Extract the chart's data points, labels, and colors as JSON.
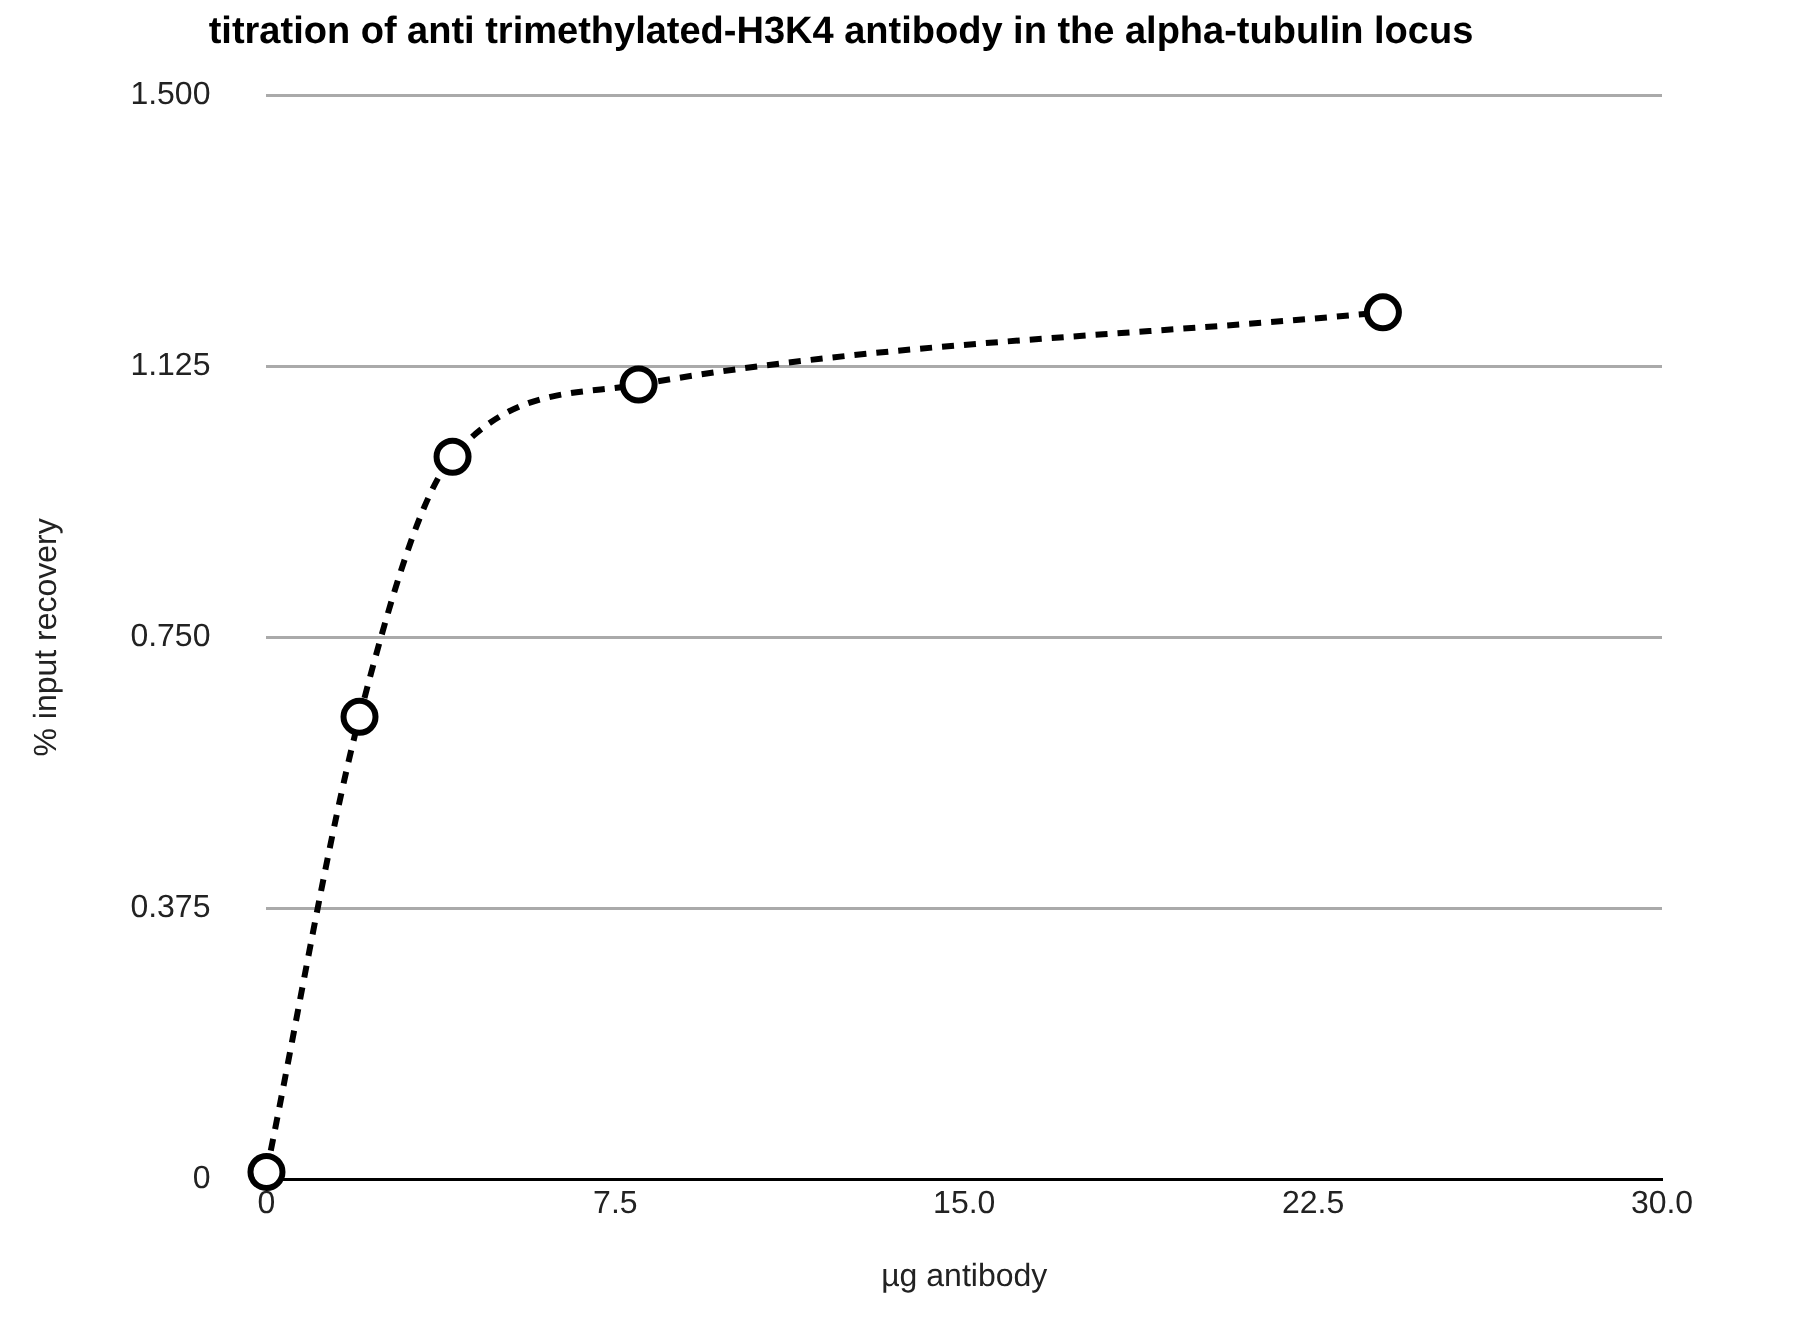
{
  "chart_data": {
    "type": "line",
    "title": "titration of anti trimethylated-H3K4 antibody in the alpha-tubulin locus",
    "xlabel": "µg antibody",
    "ylabel": "% input recovery",
    "x": [
      0,
      2,
      4,
      8,
      24
    ],
    "series": [
      {
        "color": "#000000",
        "values": [
          0.01,
          0.64,
          1.0,
          1.1,
          1.2
        ]
      }
    ],
    "xlim": [
      0,
      30
    ],
    "xticks": [
      0,
      7.5,
      {
        "value": 15,
        "label": "15.0"
      },
      22.5,
      {
        "value": 30,
        "label": "30.0"
      }
    ],
    "ylim": [
      0,
      1.5
    ],
    "yticks": [
      0,
      0.375,
      {
        "value": 0.75,
        "label": "0.750"
      },
      1.125,
      {
        "value": 1.5,
        "label": "1.500"
      }
    ],
    "grid": "y",
    "legend": false,
    "marker": "circle",
    "line_style": "dashed"
  }
}
